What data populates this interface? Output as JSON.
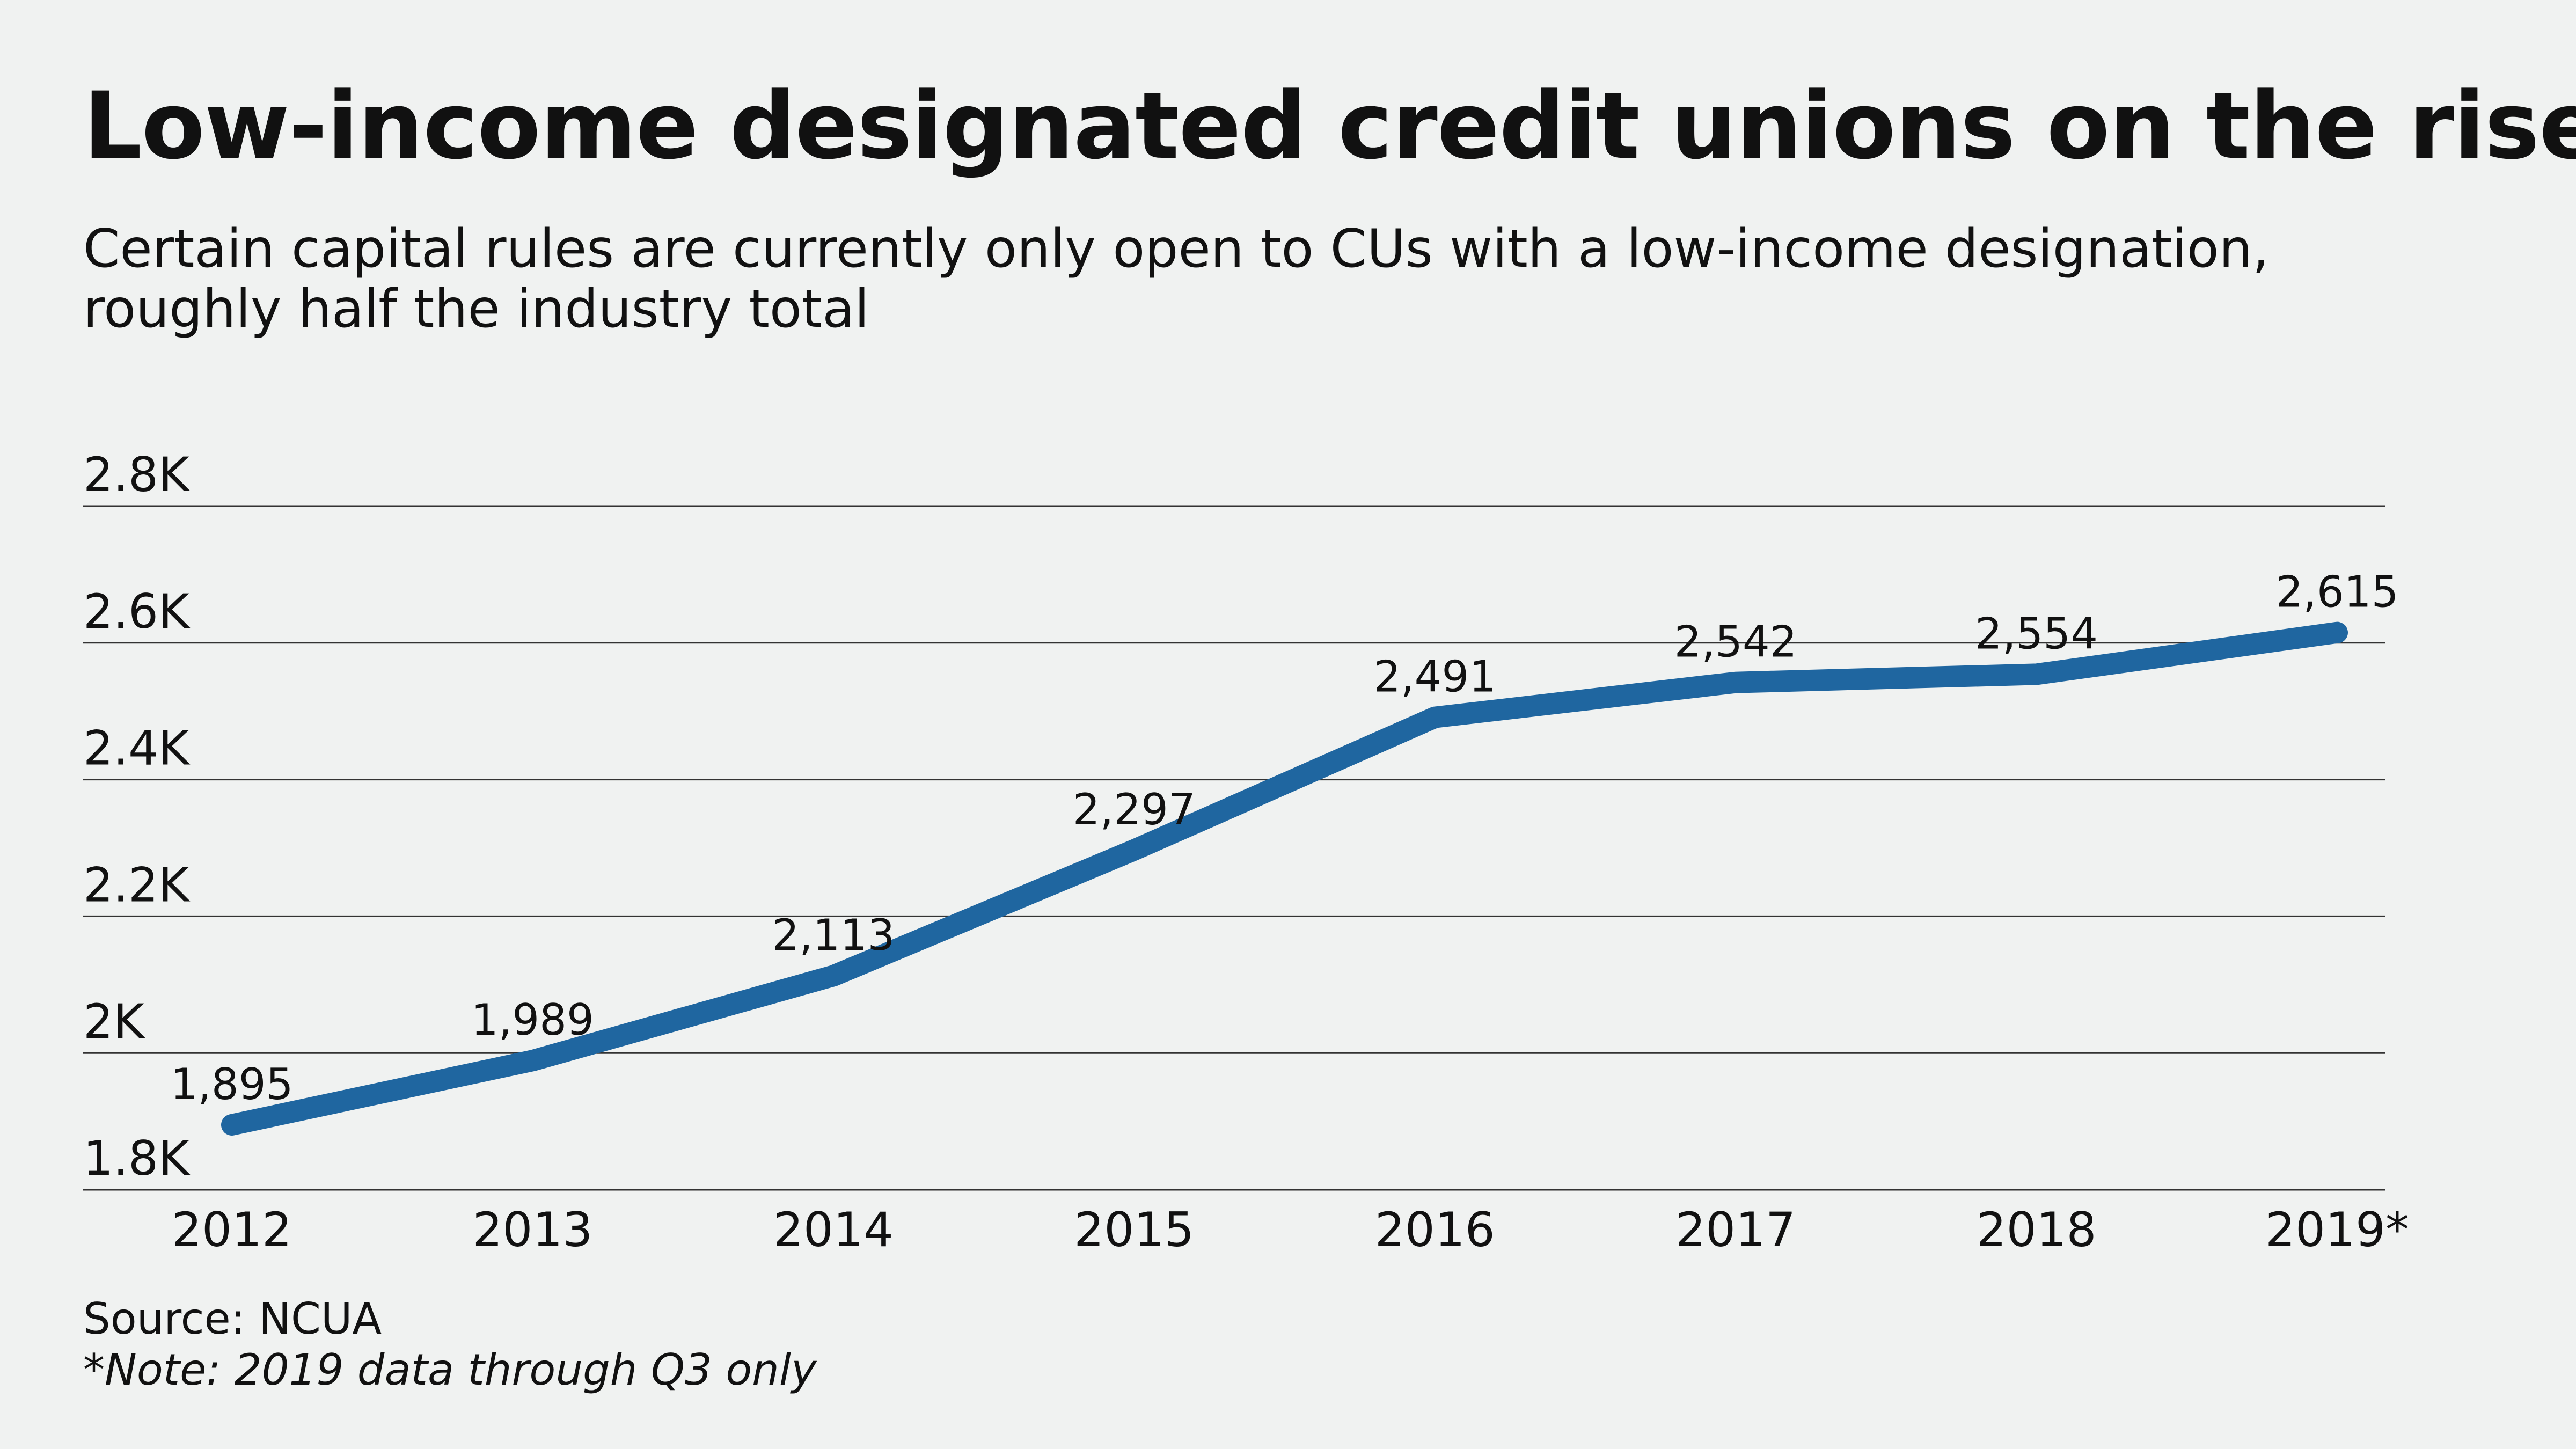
{
  "title": "Low-income designated credit unions on the rise",
  "subtitle": "Certain capital rules are currently only open to CUs with a low-income designation, roughly half the industry total",
  "source": "Source: NCUA",
  "note": "*Note: 2019 data through Q3 only",
  "chart_data": {
    "type": "line",
    "x": [
      "2012",
      "2013",
      "2014",
      "2015",
      "2016",
      "2017",
      "2018",
      "2019*"
    ],
    "series": [
      {
        "values": [
          1895,
          1989,
          2113,
          2297,
          2491,
          2542,
          2554,
          2615
        ],
        "labels": [
          "1,895",
          "1,989",
          "2,113",
          "2,297",
          "2,491",
          "2,542",
          "2,554",
          "2,615"
        ]
      }
    ],
    "yticks": [
      1800,
      2000,
      2200,
      2400,
      2600,
      2800
    ],
    "ytick_labels": [
      "1.8K",
      "2K",
      "2.2K",
      "2.4K",
      "2.6K",
      "2.8K"
    ],
    "ylim": [
      1800,
      2800
    ],
    "xlabel": "",
    "ylabel": "",
    "grid": true,
    "line_color": "#1f66a0",
    "gridline_color": "#333333"
  }
}
